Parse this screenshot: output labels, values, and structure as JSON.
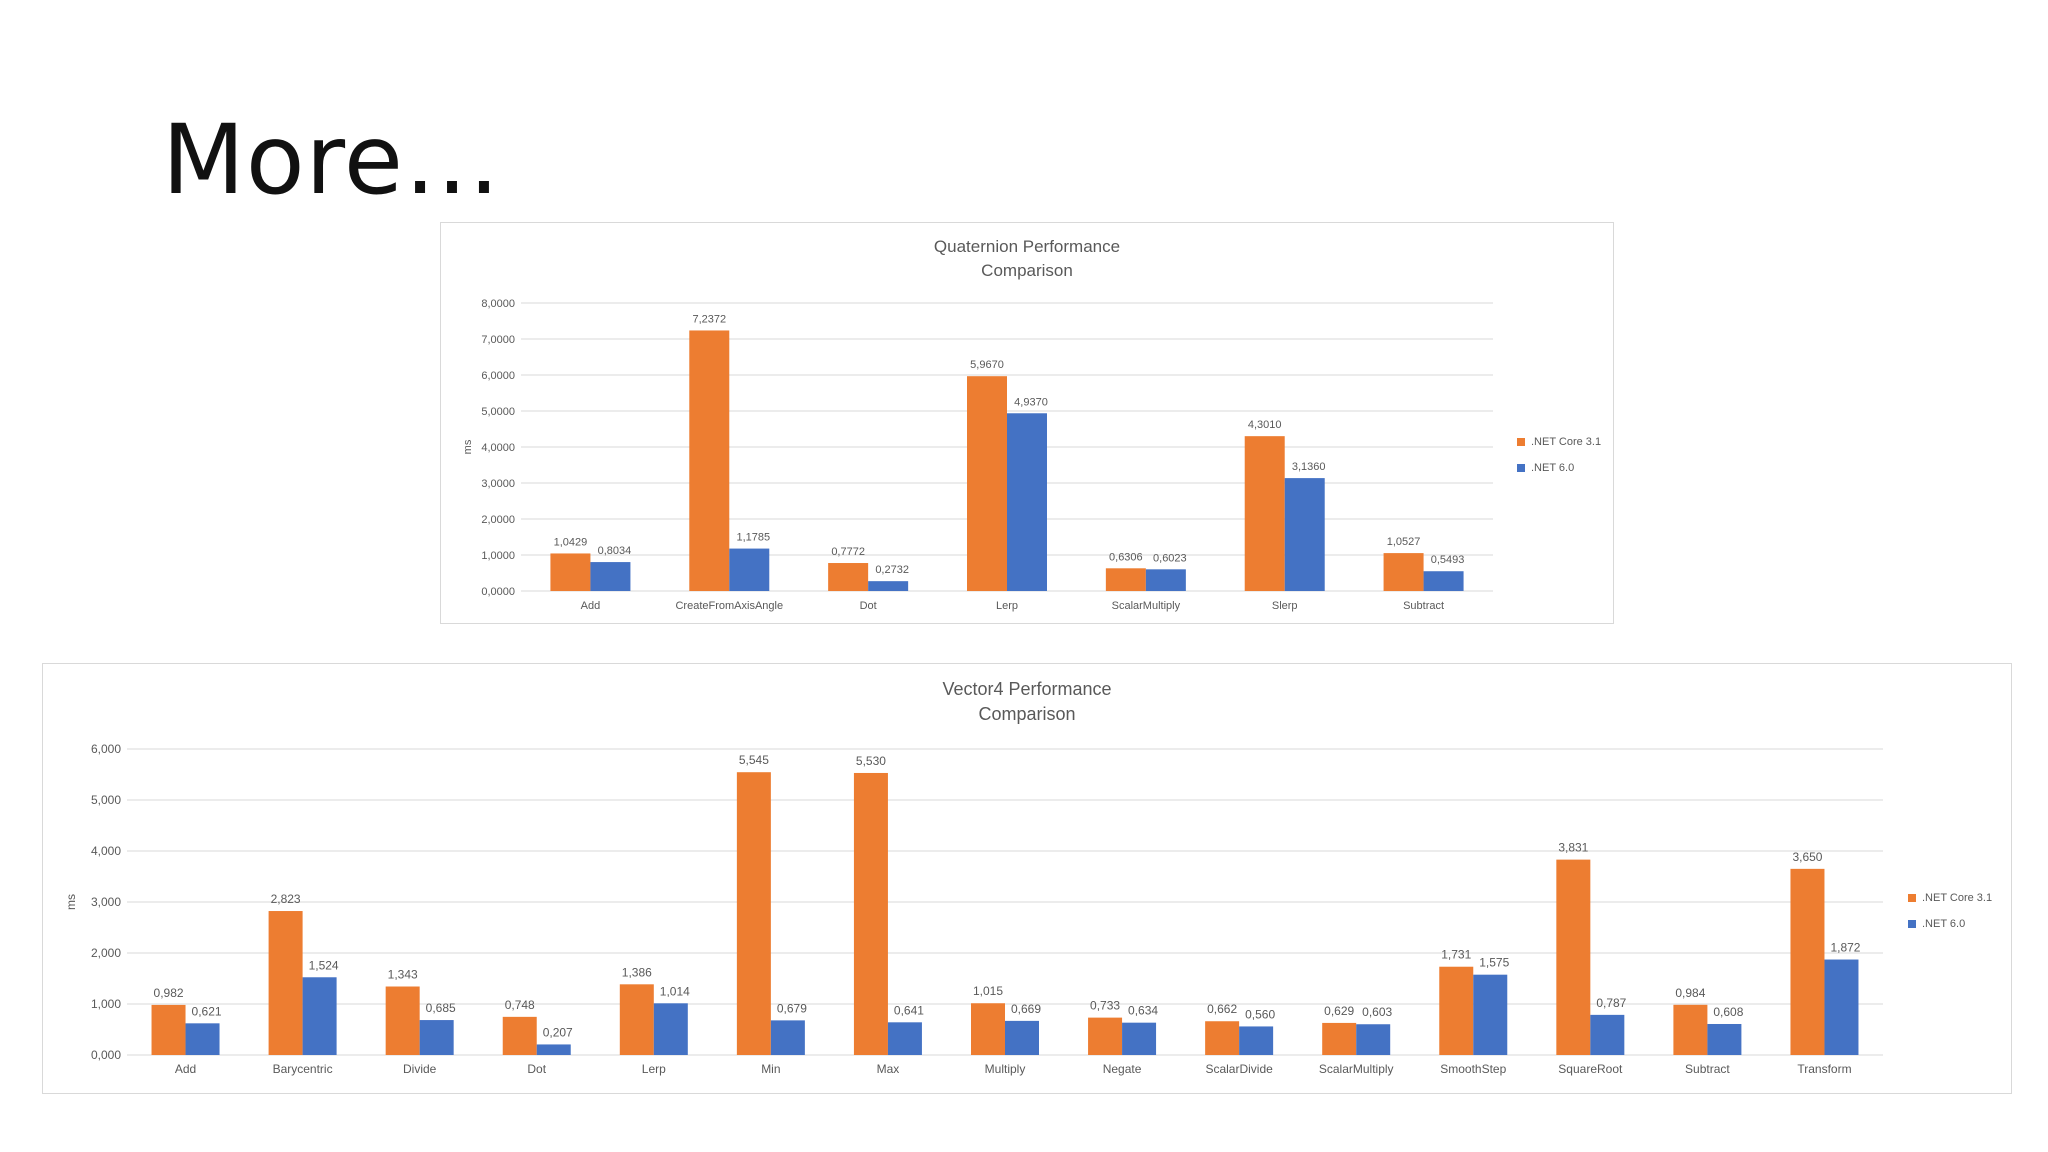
{
  "slide": {
    "title": "More…"
  },
  "colors": {
    "series1": "#ED7D31",
    "series2": "#4472C4",
    "grid": "#D9D9D9",
    "text": "#595959"
  },
  "chart_data": [
    {
      "type": "bar",
      "title_line1": "Quaternion Performance",
      "title_line2": "Comparison",
      "xlabel": "",
      "ylabel": "ms",
      "ylim": [
        0,
        8
      ],
      "yticks": [
        0,
        1,
        2,
        3,
        4,
        5,
        6,
        7,
        8
      ],
      "ytick_labels": [
        "0,0000",
        "1,0000",
        "2,0000",
        "3,0000",
        "4,0000",
        "5,0000",
        "6,0000",
        "7,0000",
        "8,0000"
      ],
      "grid": true,
      "legend_position": "right",
      "categories": [
        "Add",
        "CreateFromAxisAngle",
        "Dot",
        "Lerp",
        "ScalarMultiply",
        "Slerp",
        "Subtract"
      ],
      "series": [
        {
          "name": ".NET Core 3.1",
          "values": [
            1.0429,
            7.2372,
            0.7772,
            5.967,
            0.6306,
            4.301,
            1.0527
          ],
          "labels": [
            "1,0429",
            "7,2372",
            "0,7772",
            "5,9670",
            "0,6306",
            "4,3010",
            "1,0527"
          ]
        },
        {
          "name": ".NET 6.0",
          "values": [
            0.8034,
            1.1785,
            0.2732,
            4.937,
            0.6023,
            3.136,
            0.5493
          ],
          "labels": [
            "0,8034",
            "1,1785",
            "0,2732",
            "4,9370",
            "0,6023",
            "3,1360",
            "0,5493"
          ]
        }
      ]
    },
    {
      "type": "bar",
      "title_line1": "Vector4 Performance",
      "title_line2": "Comparison",
      "xlabel": "",
      "ylabel": "ms",
      "ylim": [
        0,
        6
      ],
      "yticks": [
        0,
        1,
        2,
        3,
        4,
        5,
        6
      ],
      "ytick_labels": [
        "0,000",
        "1,000",
        "2,000",
        "3,000",
        "4,000",
        "5,000",
        "6,000"
      ],
      "grid": true,
      "legend_position": "right",
      "categories": [
        "Add",
        "Barycentric",
        "Divide",
        "Dot",
        "Lerp",
        "Min",
        "Max",
        "Multiply",
        "Negate",
        "ScalarDivide",
        "ScalarMultiply",
        "SmoothStep",
        "SquareRoot",
        "Subtract",
        "Transform"
      ],
      "series": [
        {
          "name": ".NET Core 3.1",
          "values": [
            0.982,
            2.823,
            1.343,
            0.748,
            1.386,
            5.545,
            5.53,
            1.015,
            0.733,
            0.662,
            0.629,
            1.731,
            3.831,
            0.984,
            3.65
          ],
          "labels": [
            "0,982",
            "2,823",
            "1,343",
            "0,748",
            "1,386",
            "5,545",
            "5,530",
            "1,015",
            "0,733",
            "0,662",
            "0,629",
            "1,731",
            "3,831",
            "0,984",
            "3,650"
          ]
        },
        {
          "name": ".NET 6.0",
          "values": [
            0.621,
            1.524,
            0.685,
            0.207,
            1.014,
            0.679,
            0.641,
            0.669,
            0.634,
            0.56,
            0.603,
            1.575,
            0.787,
            0.608,
            1.872
          ],
          "labels": [
            "0,621",
            "1,524",
            "0,685",
            "0,207",
            "1,014",
            "0,679",
            "0,641",
            "0,669",
            "0,634",
            "0,560",
            "0,603",
            "1,575",
            "0,787",
            "0,608",
            "1,872"
          ]
        }
      ]
    }
  ]
}
